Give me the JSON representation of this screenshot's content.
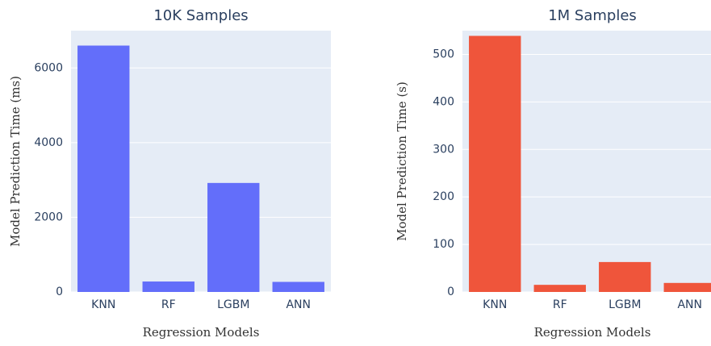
{
  "chart_data": [
    {
      "type": "bar",
      "title": "10K Samples",
      "x_label": "Regression Models",
      "y_label": "Model Prediction Time (ms)",
      "categories": [
        "KNN",
        "RF",
        "LGBM",
        "ANN"
      ],
      "values": [
        6600,
        280,
        2920,
        270
      ],
      "color": "#636efa",
      "ylim": [
        0,
        7000
      ],
      "yticks": [
        0,
        2000,
        4000,
        6000
      ],
      "grid": true
    },
    {
      "type": "bar",
      "title": "1M Samples",
      "x_label": "Regression Models",
      "y_label": "Model Prediction Time (s)",
      "categories": [
        "KNN",
        "RF",
        "LGBM",
        "ANN"
      ],
      "values": [
        539,
        15,
        63,
        19
      ],
      "color": "#ef553b",
      "ylim": [
        0,
        550
      ],
      "yticks": [
        0,
        100,
        200,
        300,
        400,
        500
      ],
      "grid": true
    }
  ]
}
